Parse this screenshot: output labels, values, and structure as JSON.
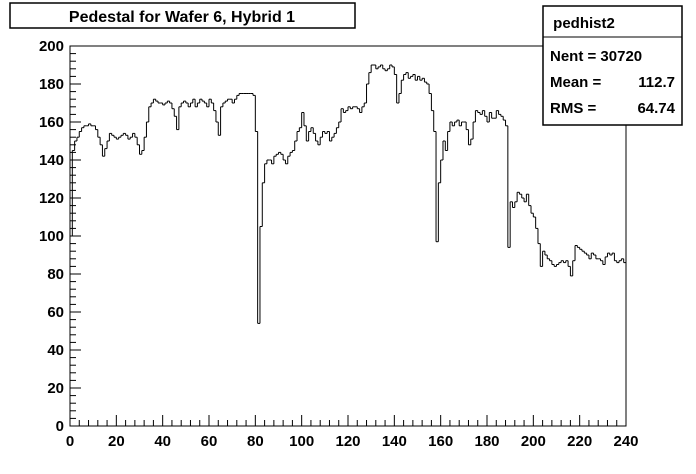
{
  "chart_data": {
    "type": "histogram",
    "title": "Pedestal for Wafer 6, Hybrid 1",
    "xlabel": "",
    "ylabel": "",
    "xlim": [
      0,
      240
    ],
    "ylim": [
      0,
      200
    ],
    "x_ticks": [
      0,
      20,
      40,
      60,
      80,
      100,
      120,
      140,
      160,
      180,
      200,
      220,
      240
    ],
    "y_ticks": [
      0,
      20,
      40,
      60,
      80,
      100,
      120,
      140,
      160,
      180,
      200
    ],
    "grid": false,
    "bin_width": 1,
    "stats": {
      "name": "pedhist2",
      "rows": [
        {
          "label": "Nent = 30720",
          "value": ""
        },
        {
          "label": "Mean  =",
          "value": "112.7"
        },
        {
          "label": "RMS   =",
          "value": "64.74"
        }
      ]
    },
    "values": [
      100,
      145,
      150,
      152,
      155,
      157,
      158,
      158,
      159,
      158,
      158,
      156,
      152,
      148,
      142,
      146,
      150,
      154,
      153,
      152,
      151,
      152,
      153,
      154,
      153,
      151,
      152,
      154,
      152,
      148,
      143,
      145,
      152,
      160,
      168,
      170,
      172,
      171,
      170,
      170,
      169,
      170,
      171,
      170,
      167,
      163,
      156,
      168,
      170,
      171,
      170,
      168,
      170,
      172,
      168,
      170,
      172,
      171,
      170,
      168,
      172,
      170,
      166,
      160,
      153,
      168,
      170,
      171,
      172,
      172,
      170,
      172,
      174,
      175,
      175,
      175,
      175,
      175,
      175,
      174,
      155,
      54,
      105,
      128,
      138,
      140,
      140,
      138,
      142,
      143,
      144,
      143,
      140,
      138,
      142,
      144,
      145,
      150,
      155,
      157,
      165,
      158,
      150,
      155,
      157,
      154,
      150,
      148,
      152,
      155,
      154,
      155,
      150,
      152,
      154,
      157,
      160,
      167,
      165,
      166,
      168,
      167,
      168,
      168,
      167,
      165,
      168,
      170,
      180,
      186,
      190,
      190,
      188,
      189,
      190,
      188,
      187,
      188,
      190,
      189,
      185,
      170,
      175,
      182,
      185,
      186,
      183,
      184,
      185,
      182,
      184,
      182,
      183,
      181,
      180,
      175,
      166,
      155,
      97,
      128,
      140,
      150,
      145,
      155,
      160,
      158,
      160,
      161,
      158,
      160,
      160,
      156,
      148,
      151,
      160,
      166,
      165,
      164,
      166,
      163,
      160,
      165,
      162,
      162,
      166,
      164,
      163,
      161,
      158,
      94,
      118,
      115,
      118,
      123,
      122,
      120,
      118,
      122,
      116,
      112,
      110,
      104,
      96,
      84,
      92,
      90,
      88,
      87,
      85,
      84,
      85,
      86,
      87,
      86,
      87,
      84,
      79,
      87,
      95,
      94,
      93,
      92,
      91,
      90,
      88,
      91,
      90,
      88,
      88,
      87,
      85,
      89,
      91,
      90,
      91,
      87,
      86,
      87,
      88,
      86
    ]
  }
}
